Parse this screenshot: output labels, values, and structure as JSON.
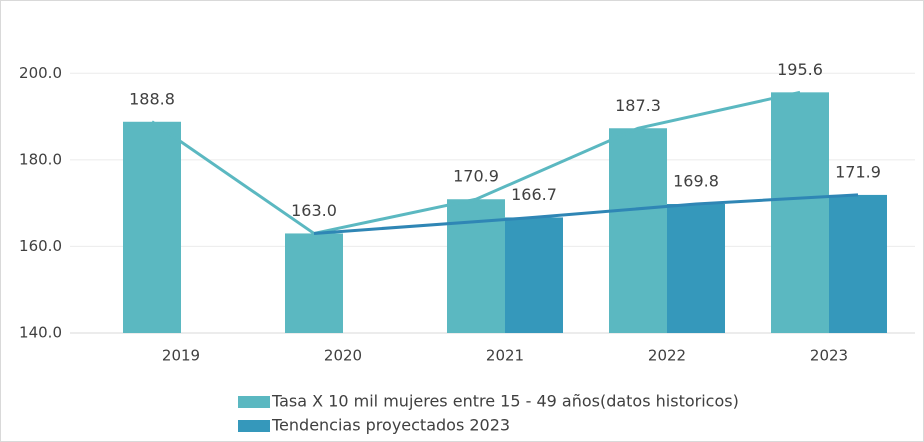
{
  "chart_data": {
    "type": "bar",
    "categories": [
      "2019",
      "2020",
      "2021",
      "2022",
      "2023"
    ],
    "series": [
      {
        "name": "Tasa X 10 mil mujeres entre 15 - 49 años(datos historicos)",
        "color": "#5bb8c1",
        "values": [
          188.8,
          163.0,
          170.9,
          187.3,
          195.6
        ],
        "value_labels": [
          "188.8",
          "163.0",
          "170.9",
          "187.3",
          "195.6"
        ]
      },
      {
        "name": "Tendencias proyectados 2023",
        "color": "#3598bb",
        "values": [
          null,
          null,
          166.7,
          169.8,
          171.9
        ],
        "value_labels": [
          null,
          null,
          "166.7",
          "169.8",
          "171.9"
        ]
      }
    ],
    "ylim": [
      140,
      210
    ],
    "yticks": [
      {
        "value": 140,
        "label": "140.0"
      },
      {
        "value": 160,
        "label": "160.0"
      },
      {
        "value": 180,
        "label": "180.0"
      },
      {
        "value": 200,
        "label": "200.0"
      }
    ],
    "grid": true,
    "legend": "bottom"
  }
}
